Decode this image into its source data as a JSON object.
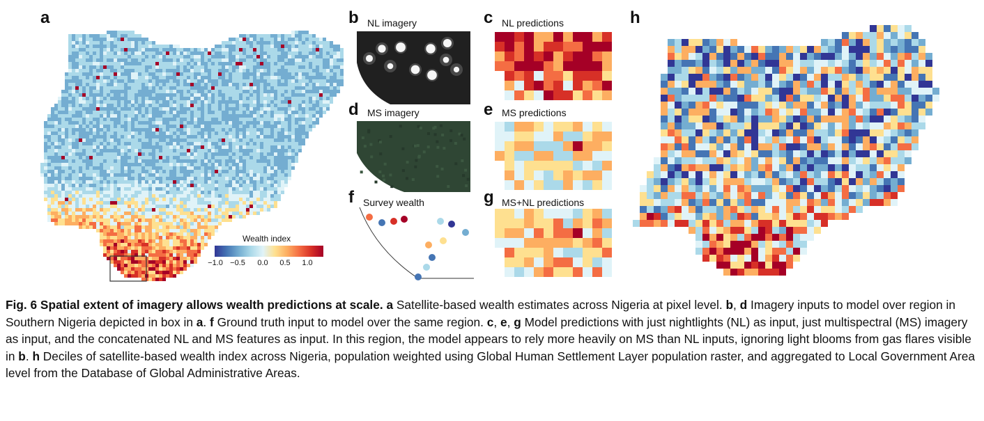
{
  "panels": {
    "a": {
      "label": "a"
    },
    "b": {
      "label": "b",
      "title": "NL imagery"
    },
    "c": {
      "label": "c",
      "title": "NL predictions"
    },
    "d": {
      "label": "d",
      "title": "MS imagery"
    },
    "e": {
      "label": "e",
      "title": "MS predictions"
    },
    "f": {
      "label": "f",
      "title": "Survey wealth"
    },
    "g": {
      "label": "g",
      "title": "MS+NL predictions"
    },
    "h": {
      "label": "h"
    }
  },
  "colorbar": {
    "title": "Wealth index",
    "ticks": [
      "−1.0",
      "−0.5",
      "0.0",
      "0.5",
      "1.0"
    ],
    "colors": [
      "#313695",
      "#4575b4",
      "#74add1",
      "#abd9e9",
      "#e0f3f8",
      "#fee090",
      "#fdae61",
      "#f46d43",
      "#d73027",
      "#a50026"
    ]
  },
  "caption": {
    "heading": "Fig. 6 Spatial extent of imagery allows wealth predictions at scale.",
    "a_label": "a",
    "a_text": " Satellite-based wealth estimates across Nigeria at pixel level. ",
    "bd_b": "b",
    "bd_sep": ", ",
    "bd_d": "d",
    "bd_text": " Imagery inputs to model over region in Southern Nigeria depicted in box in ",
    "box_ref": "a",
    "period1": ". ",
    "f_label": "f",
    "f_text": " Ground truth input to model over the same region. ",
    "ceg_c": "c",
    "ceg_sep1": ", ",
    "ceg_e": "e",
    "ceg_sep2": ", ",
    "ceg_g": "g",
    "ceg_text": " Model predictions with just nightlights (NL) as input, just multispectral (MS) imagery as input, and the concatenated NL and MS features as input. In this region, the model appears to rely more heavily on MS than NL inputs, ignoring light blooms from gas flares visible in ",
    "flare_ref": "b",
    "period2": ". ",
    "h_label": "h",
    "h_text": " Deciles of satellite-based wealth index across Nigeria, population weighted using Global Human Settlement Layer population raster, and aggregated to Local Government Area level from the Database of Global Administrative Areas."
  }
}
